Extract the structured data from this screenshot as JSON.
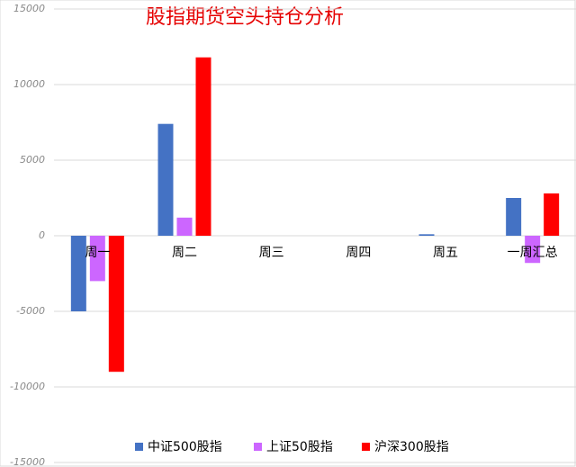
{
  "chart_data": {
    "type": "bar",
    "title": "股指期货空头持仓分析",
    "categories": [
      "周一",
      "周二",
      "周三",
      "周四",
      "周五",
      "一周汇总"
    ],
    "series": [
      {
        "name": "中证500股指",
        "color": "#4472c4",
        "values": [
          -5000,
          7400,
          0,
          0,
          100,
          2500
        ]
      },
      {
        "name": "上证50股指",
        "color": "#cc66ff",
        "values": [
          -3000,
          1200,
          0,
          0,
          0,
          -1800
        ]
      },
      {
        "name": "沪深300股指",
        "color": "#ff0000",
        "values": [
          -9000,
          11800,
          0,
          0,
          0,
          2800
        ]
      }
    ],
    "ylim": [
      -15000,
      15000
    ],
    "yticks": [
      -15000,
      -10000,
      -5000,
      0,
      5000,
      10000,
      15000
    ],
    "grid": true
  }
}
